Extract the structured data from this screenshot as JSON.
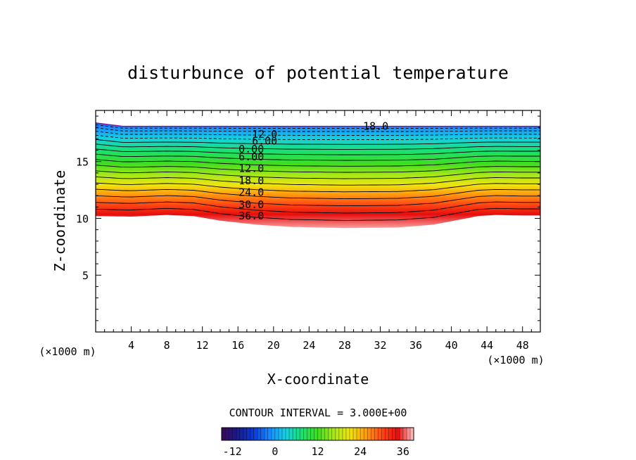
{
  "chart_data": {
    "type": "contour",
    "title": "disturbunce of potential temperature",
    "xlabel": "X-coordinate",
    "ylabel": "Z-coordinate",
    "x_unit": "(×1000 m)",
    "y_unit": "(×1000 m)",
    "xlim": [
      0,
      50
    ],
    "ylim": [
      0,
      19.5
    ],
    "x_ticks": [
      4,
      8,
      12,
      16,
      20,
      24,
      28,
      32,
      36,
      40,
      44,
      48
    ],
    "y_ticks": [
      5,
      10,
      15
    ],
    "contour_interval_label": "CONTOUR INTERVAL = 3.000E+00",
    "contour_interval": 3.0,
    "field_range": [
      -15,
      39
    ],
    "contour_labels": [
      {
        "text": "18.0",
        "x": 31.5,
        "z": 18.1
      },
      {
        "text": "12.0",
        "x": 19.0,
        "z": 17.4
      },
      {
        "text": "6.00",
        "x": 19.0,
        "z": 16.8
      },
      {
        "text": "0.00",
        "x": 17.5,
        "z": 16.1
      },
      {
        "text": "6.00",
        "x": 17.5,
        "z": 15.4
      },
      {
        "text": "12.0",
        "x": 17.5,
        "z": 14.4
      },
      {
        "text": "18.0",
        "x": 17.5,
        "z": 13.3
      },
      {
        "text": "24.0",
        "x": 17.5,
        "z": 12.3
      },
      {
        "text": "30.0",
        "x": 17.5,
        "z": 11.2
      },
      {
        "text": "36.0",
        "x": 17.5,
        "z": 10.2
      }
    ],
    "top_boundary": {
      "x": [
        0,
        3,
        50
      ],
      "z": [
        18.4,
        18.1,
        18.1
      ]
    },
    "bottom_boundary": {
      "x": [
        0,
        4,
        8,
        11,
        14,
        18,
        22,
        28,
        34,
        38,
        41,
        43,
        45,
        48,
        50
      ],
      "z": [
        10.2,
        10.15,
        10.3,
        10.2,
        9.8,
        9.45,
        9.25,
        9.15,
        9.2,
        9.45,
        9.9,
        10.2,
        10.3,
        10.25,
        10.25
      ]
    },
    "colorbar": {
      "ticks": [
        -12,
        0,
        12,
        24,
        36
      ],
      "range": [
        -15,
        39
      ],
      "palette": [
        "#3a0a5a",
        "#1a1a8a",
        "#0a3ad0",
        "#1a8aff",
        "#16d0e0",
        "#1ae070",
        "#40dd20",
        "#a8e818",
        "#f0e410",
        "#ff9c10",
        "#ff4a14",
        "#e60e0e",
        "#ffc8c8"
      ]
    }
  }
}
